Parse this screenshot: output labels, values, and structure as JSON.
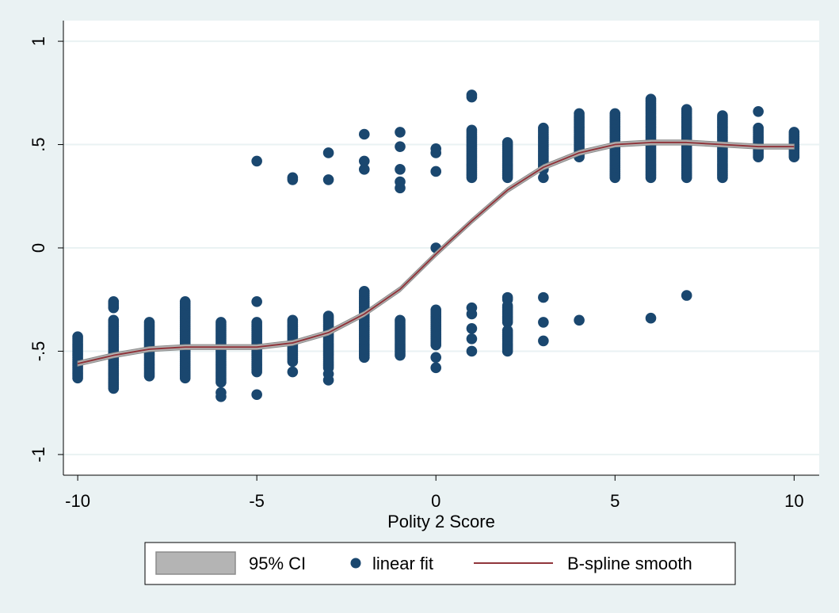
{
  "chart_data": {
    "type": "scatter",
    "title": "",
    "xlabel": "Polity 2 Score",
    "ylabel": "",
    "xlim": [
      -10.4,
      10.7
    ],
    "ylim": [
      -1.1,
      1.1
    ],
    "x_ticks": [
      {
        "value": -10,
        "label": "-10"
      },
      {
        "value": -5,
        "label": "-5"
      },
      {
        "value": 0,
        "label": "0"
      },
      {
        "value": 5,
        "label": "5"
      },
      {
        "value": 10,
        "label": "10"
      }
    ],
    "y_ticks": [
      {
        "value": -1,
        "label": "-1"
      },
      {
        "value": -0.5,
        "label": "-.5"
      },
      {
        "value": 0,
        "label": "0"
      },
      {
        "value": 0.5,
        "label": ".5"
      },
      {
        "value": 1,
        "label": "1"
      }
    ],
    "grid": true,
    "legend_position": "bottom",
    "colors": {
      "background": "#eaf2f3",
      "plot_area": "#ffffff",
      "grid": "#eaf2f3",
      "points": "#1a476f",
      "smooth_line": "#90353b",
      "ci_band": "#b4b4b4",
      "ci_border": "#8c8c8c"
    },
    "legend": [
      {
        "label": "95% CI",
        "kind": "band"
      },
      {
        "label": "linear fit",
        "kind": "marker"
      },
      {
        "label": "B-spline smooth",
        "kind": "line"
      }
    ],
    "series": [
      {
        "name": "linear fit",
        "kind": "scatter",
        "columns": [
          {
            "x": -10,
            "ranges": [
              [
                -0.63,
                -0.43
              ]
            ]
          },
          {
            "x": -9,
            "ranges": [
              [
                -0.68,
                -0.35
              ],
              [
                -0.29,
                -0.26
              ]
            ]
          },
          {
            "x": -8,
            "ranges": [
              [
                -0.62,
                -0.36
              ]
            ]
          },
          {
            "x": -7,
            "ranges": [
              [
                -0.63,
                -0.26
              ]
            ]
          },
          {
            "x": -6,
            "ranges": [
              [
                -0.65,
                -0.36
              ]
            ],
            "points": [
              -0.72,
              -0.7
            ]
          },
          {
            "x": -5,
            "ranges": [
              [
                -0.6,
                -0.36
              ]
            ],
            "points": [
              -0.71,
              -0.26,
              0.42
            ]
          },
          {
            "x": -4,
            "ranges": [
              [
                -0.55,
                -0.35
              ]
            ],
            "points": [
              -0.6,
              0.33,
              0.34
            ]
          },
          {
            "x": -3,
            "ranges": [
              [
                -0.58,
                -0.33
              ]
            ],
            "points": [
              -0.64,
              -0.61,
              0.33,
              0.46
            ]
          },
          {
            "x": -2,
            "ranges": [
              [
                -0.53,
                -0.21
              ]
            ],
            "points": [
              0.38,
              0.42,
              0.55
            ]
          },
          {
            "x": -1,
            "ranges": [
              [
                -0.52,
                -0.35
              ]
            ],
            "points": [
              0.29,
              0.32,
              0.38,
              0.49,
              0.56
            ]
          },
          {
            "x": 0,
            "ranges": [
              [
                -0.47,
                -0.3
              ]
            ],
            "points": [
              -0.58,
              -0.53,
              0.0,
              0.37,
              0.46,
              0.48
            ]
          },
          {
            "x": 1,
            "ranges": [
              [
                0.34,
                0.57
              ]
            ],
            "points": [
              -0.5,
              -0.44,
              -0.39,
              -0.32,
              -0.29,
              0.73,
              0.74
            ]
          },
          {
            "x": 2,
            "ranges": [
              [
                -0.5,
                -0.4
              ],
              [
                -0.36,
                -0.28
              ],
              [
                0.34,
                0.51
              ]
            ],
            "points": [
              -0.25,
              -0.24
            ]
          },
          {
            "x": 3,
            "ranges": [
              [
                0.38,
                0.58
              ]
            ],
            "points": [
              -0.45,
              -0.36,
              -0.24,
              0.34
            ]
          },
          {
            "x": 4,
            "ranges": [
              [
                0.44,
                0.65
              ]
            ],
            "points": [
              -0.35
            ]
          },
          {
            "x": 5,
            "ranges": [
              [
                0.34,
                0.65
              ]
            ]
          },
          {
            "x": 6,
            "ranges": [
              [
                0.34,
                0.72
              ]
            ],
            "points": [
              -0.34
            ]
          },
          {
            "x": 7,
            "ranges": [
              [
                0.34,
                0.67
              ]
            ],
            "points": [
              -0.23
            ]
          },
          {
            "x": 8,
            "ranges": [
              [
                0.34,
                0.64
              ]
            ]
          },
          {
            "x": 9,
            "ranges": [
              [
                0.44,
                0.58
              ]
            ],
            "points": [
              0.66
            ]
          },
          {
            "x": 10,
            "ranges": [
              [
                0.44,
                0.56
              ]
            ]
          }
        ]
      },
      {
        "name": "B-spline smooth",
        "kind": "line",
        "x": [
          -10,
          -9,
          -8,
          -7,
          -6,
          -5,
          -4,
          -3,
          -2,
          -1,
          0,
          1,
          2,
          3,
          4,
          5,
          6,
          7,
          8,
          9,
          10
        ],
        "values": [
          -0.56,
          -0.52,
          -0.49,
          -0.48,
          -0.48,
          -0.48,
          -0.46,
          -0.41,
          -0.32,
          -0.2,
          -0.03,
          0.13,
          0.28,
          0.39,
          0.46,
          0.5,
          0.51,
          0.51,
          0.5,
          0.49,
          0.49
        ],
        "ci_halfwidth": 0.012
      }
    ]
  }
}
